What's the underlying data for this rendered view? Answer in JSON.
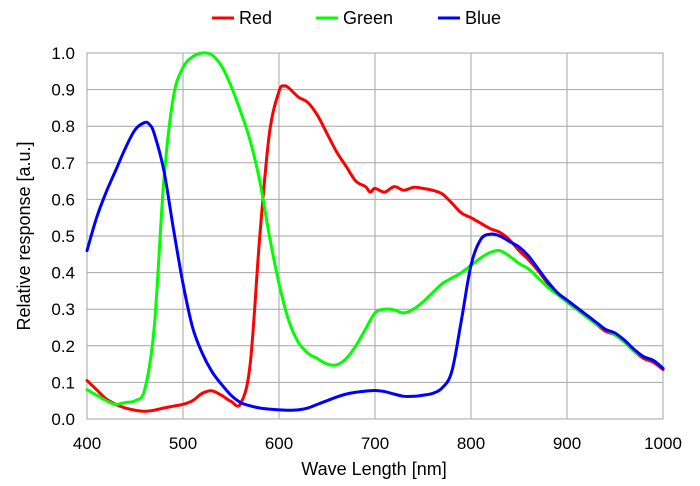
{
  "chart_data": {
    "type": "line",
    "title": "",
    "xlabel": "Wave Length [nm]",
    "ylabel": "Relative response [a.u.]",
    "xlim": [
      400,
      1000
    ],
    "ylim": [
      0.0,
      1.0
    ],
    "x_ticks": [
      "400",
      "500",
      "600",
      "700",
      "800",
      "900",
      "1000"
    ],
    "y_ticks": [
      "0.0",
      "0.1",
      "0.2",
      "0.3",
      "0.4",
      "0.5",
      "0.6",
      "0.7",
      "0.8",
      "0.9",
      "1.0"
    ],
    "grid": true,
    "legend_position": "top",
    "series": [
      {
        "name": "Red",
        "color": "#ff0000",
        "points": [
          [
            400,
            0.105
          ],
          [
            410,
            0.08
          ],
          [
            420,
            0.055
          ],
          [
            430,
            0.04
          ],
          [
            440,
            0.03
          ],
          [
            450,
            0.024
          ],
          [
            460,
            0.021
          ],
          [
            470,
            0.024
          ],
          [
            480,
            0.03
          ],
          [
            490,
            0.035
          ],
          [
            500,
            0.04
          ],
          [
            510,
            0.05
          ],
          [
            520,
            0.07
          ],
          [
            530,
            0.077
          ],
          [
            540,
            0.065
          ],
          [
            550,
            0.048
          ],
          [
            560,
            0.042
          ],
          [
            570,
            0.15
          ],
          [
            580,
            0.5
          ],
          [
            590,
            0.78
          ],
          [
            600,
            0.895
          ],
          [
            605,
            0.91
          ],
          [
            610,
            0.905
          ],
          [
            620,
            0.88
          ],
          [
            630,
            0.865
          ],
          [
            640,
            0.83
          ],
          [
            650,
            0.78
          ],
          [
            660,
            0.73
          ],
          [
            670,
            0.69
          ],
          [
            680,
            0.65
          ],
          [
            690,
            0.635
          ],
          [
            695,
            0.62
          ],
          [
            700,
            0.63
          ],
          [
            710,
            0.62
          ],
          [
            720,
            0.635
          ],
          [
            730,
            0.625
          ],
          [
            740,
            0.633
          ],
          [
            750,
            0.63
          ],
          [
            760,
            0.625
          ],
          [
            770,
            0.615
          ],
          [
            780,
            0.59
          ],
          [
            790,
            0.563
          ],
          [
            800,
            0.55
          ],
          [
            810,
            0.535
          ],
          [
            820,
            0.52
          ],
          [
            830,
            0.51
          ],
          [
            840,
            0.49
          ],
          [
            850,
            0.46
          ],
          [
            860,
            0.435
          ],
          [
            870,
            0.405
          ],
          [
            880,
            0.37
          ],
          [
            890,
            0.345
          ],
          [
            900,
            0.32
          ],
          [
            910,
            0.3
          ],
          [
            920,
            0.28
          ],
          [
            930,
            0.26
          ],
          [
            940,
            0.24
          ],
          [
            950,
            0.23
          ],
          [
            960,
            0.21
          ],
          [
            970,
            0.185
          ],
          [
            980,
            0.165
          ],
          [
            990,
            0.155
          ],
          [
            1000,
            0.135
          ]
        ]
      },
      {
        "name": "Green",
        "color": "#00ff00",
        "points": [
          [
            400,
            0.08
          ],
          [
            410,
            0.065
          ],
          [
            420,
            0.05
          ],
          [
            430,
            0.04
          ],
          [
            440,
            0.045
          ],
          [
            450,
            0.05
          ],
          [
            460,
            0.08
          ],
          [
            470,
            0.25
          ],
          [
            480,
            0.65
          ],
          [
            490,
            0.88
          ],
          [
            500,
            0.96
          ],
          [
            510,
            0.99
          ],
          [
            520,
            1.0
          ],
          [
            530,
            0.995
          ],
          [
            540,
            0.965
          ],
          [
            550,
            0.91
          ],
          [
            560,
            0.84
          ],
          [
            570,
            0.76
          ],
          [
            580,
            0.65
          ],
          [
            590,
            0.5
          ],
          [
            600,
            0.37
          ],
          [
            610,
            0.27
          ],
          [
            620,
            0.21
          ],
          [
            630,
            0.18
          ],
          [
            640,
            0.165
          ],
          [
            650,
            0.15
          ],
          [
            660,
            0.148
          ],
          [
            670,
            0.165
          ],
          [
            680,
            0.2
          ],
          [
            690,
            0.245
          ],
          [
            700,
            0.29
          ],
          [
            710,
            0.3
          ],
          [
            720,
            0.298
          ],
          [
            730,
            0.29
          ],
          [
            740,
            0.3
          ],
          [
            750,
            0.32
          ],
          [
            760,
            0.345
          ],
          [
            770,
            0.37
          ],
          [
            780,
            0.385
          ],
          [
            790,
            0.4
          ],
          [
            800,
            0.42
          ],
          [
            810,
            0.44
          ],
          [
            820,
            0.455
          ],
          [
            830,
            0.46
          ],
          [
            840,
            0.445
          ],
          [
            850,
            0.425
          ],
          [
            860,
            0.41
          ],
          [
            870,
            0.385
          ],
          [
            880,
            0.36
          ],
          [
            890,
            0.34
          ],
          [
            900,
            0.32
          ],
          [
            910,
            0.3
          ],
          [
            920,
            0.28
          ],
          [
            930,
            0.26
          ],
          [
            940,
            0.245
          ],
          [
            950,
            0.23
          ],
          [
            960,
            0.21
          ],
          [
            970,
            0.185
          ],
          [
            980,
            0.17
          ],
          [
            990,
            0.16
          ],
          [
            1000,
            0.14
          ]
        ]
      },
      {
        "name": "Blue",
        "color": "#0000ff",
        "points": [
          [
            400,
            0.46
          ],
          [
            410,
            0.55
          ],
          [
            420,
            0.62
          ],
          [
            430,
            0.68
          ],
          [
            440,
            0.74
          ],
          [
            450,
            0.79
          ],
          [
            460,
            0.81
          ],
          [
            465,
            0.805
          ],
          [
            470,
            0.78
          ],
          [
            480,
            0.68
          ],
          [
            490,
            0.52
          ],
          [
            500,
            0.37
          ],
          [
            510,
            0.25
          ],
          [
            520,
            0.18
          ],
          [
            530,
            0.13
          ],
          [
            540,
            0.095
          ],
          [
            550,
            0.065
          ],
          [
            560,
            0.045
          ],
          [
            570,
            0.036
          ],
          [
            580,
            0.03
          ],
          [
            590,
            0.027
          ],
          [
            600,
            0.025
          ],
          [
            610,
            0.024
          ],
          [
            620,
            0.025
          ],
          [
            630,
            0.03
          ],
          [
            640,
            0.04
          ],
          [
            650,
            0.05
          ],
          [
            660,
            0.06
          ],
          [
            670,
            0.068
          ],
          [
            680,
            0.073
          ],
          [
            690,
            0.076
          ],
          [
            700,
            0.078
          ],
          [
            710,
            0.075
          ],
          [
            720,
            0.068
          ],
          [
            730,
            0.062
          ],
          [
            740,
            0.062
          ],
          [
            750,
            0.065
          ],
          [
            760,
            0.07
          ],
          [
            770,
            0.085
          ],
          [
            780,
            0.13
          ],
          [
            790,
            0.27
          ],
          [
            800,
            0.42
          ],
          [
            810,
            0.49
          ],
          [
            820,
            0.505
          ],
          [
            830,
            0.5
          ],
          [
            840,
            0.485
          ],
          [
            850,
            0.47
          ],
          [
            860,
            0.445
          ],
          [
            870,
            0.41
          ],
          [
            880,
            0.375
          ],
          [
            890,
            0.345
          ],
          [
            900,
            0.325
          ],
          [
            910,
            0.305
          ],
          [
            920,
            0.285
          ],
          [
            930,
            0.265
          ],
          [
            940,
            0.245
          ],
          [
            950,
            0.235
          ],
          [
            960,
            0.215
          ],
          [
            970,
            0.19
          ],
          [
            980,
            0.17
          ],
          [
            990,
            0.16
          ],
          [
            1000,
            0.138
          ]
        ]
      }
    ]
  }
}
